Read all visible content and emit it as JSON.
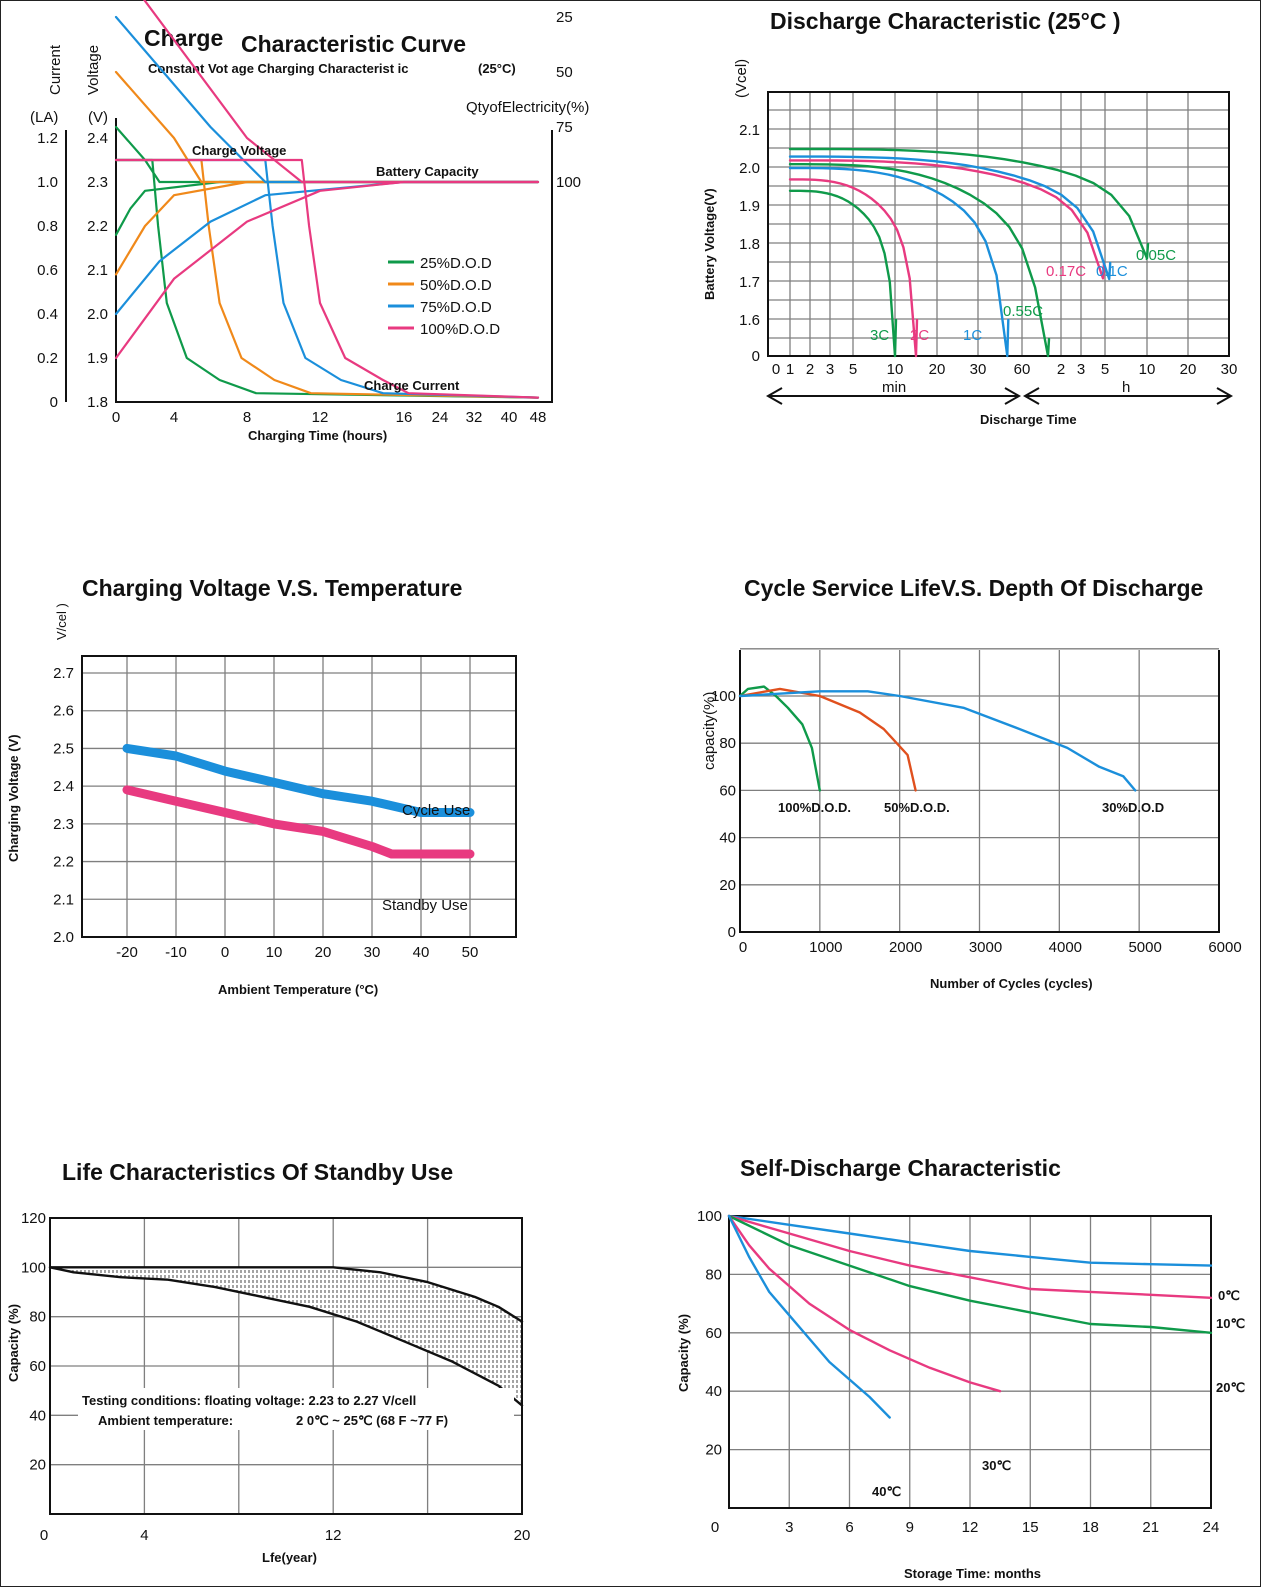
{
  "colors": {
    "green": "#0f9a4a",
    "orange": "#f0891a",
    "blue": "#1b8fdb",
    "pink": "#e83a80",
    "red": "#e0501e",
    "dark": "#111111"
  },
  "charts": {
    "charge": {
      "title_a": "Charge",
      "title_b": "Characteristic Curve",
      "subtitle": "Constant Vot age Charging Characterist ic",
      "subtitle_temp": "(25°C)",
      "y_current_label": "Current",
      "y_current_unit": "(LA)",
      "y_voltage_label": "Voltage",
      "y_voltage_unit": "(V)",
      "qty_label": "QtyofElectricity(%)",
      "xlabel": "Charging Time (hours)",
      "label_charge_voltage": "Charge Voltage",
      "label_battery_capacity": "Battery Capacity",
      "label_charge_current": "Charge Current"
    },
    "discharge": {
      "title": "Discharge Characteristic (25°C )",
      "unit_label": "(Vcel)",
      "ylabel": "Battery Voltage(V)",
      "xlabel": "Discharge Time",
      "min_label": "min",
      "h_label": "h"
    },
    "charging_temp": {
      "title": "Charging Voltage V.S. Temperature",
      "unit_label": "V/cel )",
      "ylabel": "Charging Voltage (V)",
      "xlabel": "Ambient Temperature (°C)",
      "label_cycle": "Cycle Use",
      "label_standby": "Standby Use"
    },
    "cycle_life": {
      "title": "Cycle Service LifeV.S. Depth Of Discharge",
      "ylabel": "capacity(%)",
      "xlabel": "Number of Cycles (cycles)"
    },
    "standby_life": {
      "title": "Life Characteristics Of Standby Use",
      "ylabel": "Capacity (%)",
      "xlabel": "Lfe(year)",
      "note_line1": "Testing conditions: floating voltage: 2.23 to 2.27 V/cell",
      "note_line2a": "Ambient temperature:",
      "note_line2b": "2 0℃ ~ 25℃ (68 F ~77 F)"
    },
    "self_discharge": {
      "title": "Self-Discharge Characteristic",
      "ylabel": "Capacity (%)",
      "xlabel": "Storage Time: months"
    }
  },
  "chart_data": [
    {
      "id": "charge",
      "type": "line",
      "title": "Charge Characteristic Curve",
      "subtitle": "Constant Vot age Charging Characterist ic (25°C)",
      "xlabel": "Charging Time (hours)",
      "x_ticks": [
        "0",
        "4",
        "8",
        "12",
        "16",
        "24",
        "32",
        "40",
        "48"
      ],
      "y_voltage_ticks": [
        "1.8",
        "1.9",
        "2.0",
        "2.1",
        "2.2",
        "2.3",
        "2.4"
      ],
      "y_current_ticks": [
        "0",
        "0.2",
        "0.4",
        "0.6",
        "0.8",
        "1.0",
        "1.2"
      ],
      "y_qty_ticks": [
        "25",
        "50",
        "75",
        "100"
      ],
      "legend": [
        "25%D.O.D",
        "50%D.O.D",
        "75%D.O.D",
        "100%D.O.D"
      ],
      "legend_colors": [
        "#0f9a4a",
        "#f0891a",
        "#1b8fdb",
        "#e83a80"
      ],
      "series": [
        {
          "name": "25%D.O.D",
          "voltage": [
            [
              0,
              2.18
            ],
            [
              1,
              2.24
            ],
            [
              2,
              2.28
            ],
            [
              6.5,
              2.3
            ],
            [
              16,
              2.3
            ],
            [
              48,
              2.3
            ]
          ],
          "current_hold_to_h": 2.5,
          "capacity_percent": [
            [
              0,
              75
            ],
            [
              2,
              90
            ],
            [
              3,
              100
            ],
            [
              48,
              100
            ]
          ]
        },
        {
          "name": "50%D.O.D",
          "voltage": [
            [
              0,
              2.09
            ],
            [
              2,
              2.2
            ],
            [
              4,
              2.27
            ],
            [
              8,
              2.3
            ],
            [
              16,
              2.3
            ],
            [
              48,
              2.3
            ]
          ],
          "current_hold_to_h": 5.5,
          "capacity_percent": [
            [
              0,
              50
            ],
            [
              4,
              80
            ],
            [
              5.5,
              100
            ],
            [
              48,
              100
            ]
          ]
        },
        {
          "name": "75%D.O.D",
          "voltage": [
            [
              0,
              2.0
            ],
            [
              3,
              2.12
            ],
            [
              6,
              2.21
            ],
            [
              9,
              2.27
            ],
            [
              16,
              2.3
            ],
            [
              48,
              2.3
            ]
          ],
          "current_hold_to_h": 9,
          "capacity_percent": [
            [
              0,
              25
            ],
            [
              6,
              75
            ],
            [
              9,
              100
            ],
            [
              48,
              100
            ]
          ]
        },
        {
          "name": "100%D.O.D",
          "voltage": [
            [
              0,
              1.9
            ],
            [
              4,
              2.08
            ],
            [
              8,
              2.21
            ],
            [
              12,
              2.28
            ],
            [
              16,
              2.3
            ],
            [
              48,
              2.3
            ]
          ],
          "current_hold_to_h": 11,
          "capacity_percent": [
            [
              0,
              0
            ],
            [
              8,
              80
            ],
            [
              11,
              100
            ],
            [
              48,
              100
            ]
          ]
        }
      ]
    },
    {
      "id": "discharge",
      "type": "line",
      "title": "Discharge Characteristic (25°C )",
      "ylabel": "Battery Voltage(V)",
      "xlabel": "Discharge Time",
      "x_ticks": [
        "0",
        "1",
        "2",
        "3",
        "5",
        "10",
        "20",
        "30",
        "60",
        "2",
        "3",
        "5",
        "10",
        "20",
        "30"
      ],
      "y_ticks": [
        "0",
        "1.6",
        "1.7",
        "1.8",
        "1.9",
        "2.0",
        "2.1"
      ],
      "series": [
        {
          "name": "3C",
          "end_minutes": 10,
          "start_v": 1.94,
          "end_v": 1.6
        },
        {
          "name": "2C",
          "end_minutes": 15,
          "start_v": 1.97,
          "end_v": 1.6
        },
        {
          "name": "1C",
          "end_minutes": 50,
          "start_v": 2.0,
          "end_v": 1.6
        },
        {
          "name": "0.55C",
          "end_minutes": 100,
          "start_v": 2.01,
          "end_v": 1.55
        },
        {
          "name": "0.17C",
          "end_minutes": 290,
          "start_v": 2.02,
          "end_v": 1.75
        },
        {
          "name": "0.1C",
          "end_minutes": 330,
          "start_v": 2.03,
          "end_v": 1.75
        },
        {
          "name": "0.05C",
          "end_minutes": 600,
          "start_v": 2.05,
          "end_v": 1.8
        }
      ]
    },
    {
      "id": "charging_temp",
      "type": "line",
      "title": "Charging Voltage V.S. Temperature",
      "xlabel": "Ambient Temperature (°C)",
      "ylabel": "Charging Voltage (V)",
      "x_ticks": [
        "-20",
        "-10",
        "0",
        "10",
        "20",
        "30",
        "40",
        "50"
      ],
      "y_ticks": [
        "2.0",
        "2.1",
        "2.2",
        "2.3",
        "2.4",
        "2.5",
        "2.6",
        "2.7"
      ],
      "ylim": [
        2.0,
        2.7
      ],
      "series": [
        {
          "name": "Cycle Use",
          "x": [
            -20,
            -10,
            0,
            10,
            20,
            30,
            40,
            50
          ],
          "y": [
            2.5,
            2.48,
            2.44,
            2.41,
            2.38,
            2.36,
            2.33,
            2.33
          ]
        },
        {
          "name": "Standby Use",
          "x": [
            -20,
            -10,
            0,
            10,
            20,
            30,
            34,
            40,
            50
          ],
          "y": [
            2.39,
            2.36,
            2.33,
            2.3,
            2.28,
            2.24,
            2.22,
            2.22,
            2.22
          ]
        }
      ]
    },
    {
      "id": "cycle_life",
      "type": "line",
      "title": "Cycle Service LifeV.S. Depth Of Discharge",
      "xlabel": "Number of Cycles (cycles)",
      "ylabel": "capacity(%)",
      "x_ticks": [
        "0",
        "1000",
        "2000",
        "3000",
        "4000",
        "5000",
        "6000"
      ],
      "y_ticks": [
        "0",
        "20",
        "40",
        "60",
        "80",
        "100"
      ],
      "xlim": [
        0,
        6000
      ],
      "ylim": [
        0,
        120
      ],
      "series": [
        {
          "name": "100%D.O.D.",
          "x": [
            0,
            100,
            300,
            450,
            600,
            780,
            900,
            1000
          ],
          "y": [
            100,
            103,
            104,
            100,
            95,
            88,
            78,
            60
          ]
        },
        {
          "name": "50%D.O.D.",
          "x": [
            0,
            500,
            1000,
            1500,
            1800,
            2100,
            2200
          ],
          "y": [
            100,
            103,
            100,
            93,
            86,
            75,
            60
          ]
        },
        {
          "name": "30%D.O.D",
          "x": [
            0,
            1000,
            1600,
            2000,
            2800,
            3500,
            4100,
            4500,
            4800,
            4950
          ],
          "y": [
            100,
            102,
            102,
            100,
            95,
            86,
            78,
            70,
            66,
            60
          ]
        }
      ]
    },
    {
      "id": "standby_life",
      "type": "area",
      "title": "Life Characteristics Of Standby Use",
      "xlabel": "Lfe(year)",
      "ylabel": "Capacity (%)",
      "x_ticks": [
        "0",
        "4",
        "12",
        "20"
      ],
      "y_ticks": [
        "20",
        "40",
        "60",
        "80",
        "100",
        "120"
      ],
      "xlim": [
        0,
        20
      ],
      "ylim": [
        0,
        120
      ],
      "series": [
        {
          "name": "upper bound",
          "x": [
            0,
            1,
            3,
            5,
            8,
            10,
            12,
            14,
            16,
            18,
            19,
            20
          ],
          "y": [
            100,
            100,
            100,
            100,
            100,
            100,
            100,
            98,
            94,
            88,
            84,
            78
          ]
        },
        {
          "name": "lower bound",
          "x": [
            0,
            1,
            3,
            5,
            7,
            9,
            11,
            13,
            15,
            17,
            19,
            20
          ],
          "y": [
            100,
            98,
            96,
            95,
            92,
            88,
            84,
            78,
            70,
            62,
            52,
            44
          ]
        }
      ]
    },
    {
      "id": "self_discharge",
      "type": "line",
      "title": "Self-Discharge Characteristic",
      "xlabel": "Storage Time: months",
      "ylabel": "Capacity (%)",
      "x_ticks": [
        "0",
        "3",
        "6",
        "9",
        "12",
        "15",
        "18",
        "21",
        "24"
      ],
      "y_ticks": [
        "20",
        "40",
        "60",
        "80",
        "100"
      ],
      "xlim": [
        0,
        24
      ],
      "ylim": [
        0,
        100
      ],
      "series": [
        {
          "name": "0℃",
          "x": [
            0,
            3,
            6,
            9,
            12,
            15,
            18,
            21,
            24
          ],
          "y": [
            100,
            97,
            94,
            91,
            88,
            86,
            84,
            83.5,
            83
          ]
        },
        {
          "name": "10℃",
          "x": [
            0,
            3,
            6,
            9,
            12,
            15,
            18,
            21,
            24
          ],
          "y": [
            100,
            94,
            88,
            83,
            79,
            75,
            74,
            73,
            72
          ]
        },
        {
          "name": "20℃",
          "x": [
            0,
            3,
            6,
            9,
            12,
            15,
            18,
            21,
            24
          ],
          "y": [
            100,
            90,
            83,
            76,
            71,
            67,
            63,
            62,
            60
          ]
        },
        {
          "name": "30℃",
          "x": [
            0,
            1,
            2,
            3,
            4,
            6,
            8,
            10,
            12,
            13.5
          ],
          "y": [
            100,
            90,
            82,
            76,
            70,
            61,
            54,
            48,
            43,
            40
          ]
        },
        {
          "name": "40℃",
          "x": [
            0,
            1,
            2,
            3,
            4,
            5,
            6,
            7,
            8
          ],
          "y": [
            100,
            86,
            74,
            66,
            58,
            50,
            44,
            38,
            31
          ]
        }
      ],
      "series_colors": [
        "#1b8fdb",
        "#e83a80",
        "#0f9a4a",
        "#e83a80",
        "#1b8fdb"
      ]
    }
  ]
}
